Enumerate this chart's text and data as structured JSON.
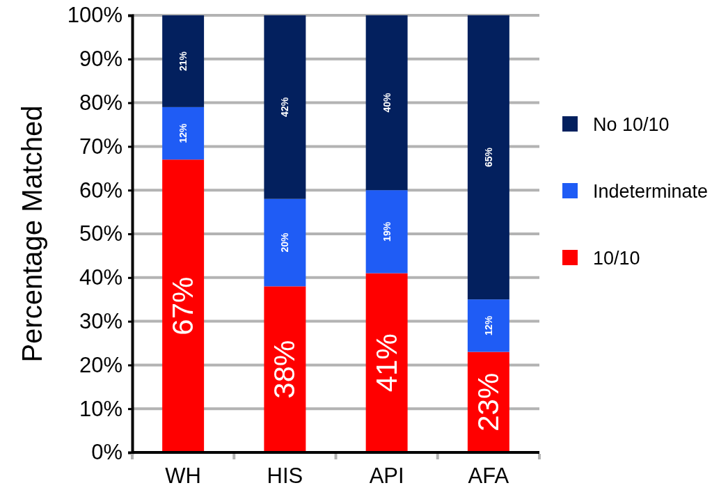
{
  "chart_data": {
    "type": "bar",
    "stacked": true,
    "ylabel": "Percentage Matched",
    "categories": [
      "WH",
      "HIS",
      "API",
      "AFA"
    ],
    "series": [
      {
        "name": "10/10",
        "color": "#ff0000",
        "values": [
          67,
          38,
          41,
          23
        ],
        "value_labels": [
          "67%",
          "38%",
          "41%",
          "23%"
        ]
      },
      {
        "name": "Indeterminate",
        "color": "#1f5cf5",
        "values": [
          12,
          20,
          19,
          12
        ],
        "value_labels": [
          "12%",
          "20%",
          "19%",
          "12%"
        ]
      },
      {
        "name": "No 10/10",
        "color": "#03205e",
        "values": [
          21,
          42,
          40,
          65
        ],
        "value_labels": [
          "21%",
          "42%",
          "40%",
          "65%"
        ]
      }
    ],
    "ylim": [
      0,
      100
    ],
    "yticks": [
      {
        "value": 0,
        "label": "0%"
      },
      {
        "value": 10,
        "label": "10%"
      },
      {
        "value": 20,
        "label": "20%"
      },
      {
        "value": 30,
        "label": "30%"
      },
      {
        "value": 40,
        "label": "40%"
      },
      {
        "value": 50,
        "label": "50%"
      },
      {
        "value": 60,
        "label": "60%"
      },
      {
        "value": 70,
        "label": "70%"
      },
      {
        "value": 80,
        "label": "80%"
      },
      {
        "value": 90,
        "label": "90%"
      },
      {
        "value": 100,
        "label": "100%"
      }
    ],
    "grid": "y",
    "legend": "right"
  }
}
